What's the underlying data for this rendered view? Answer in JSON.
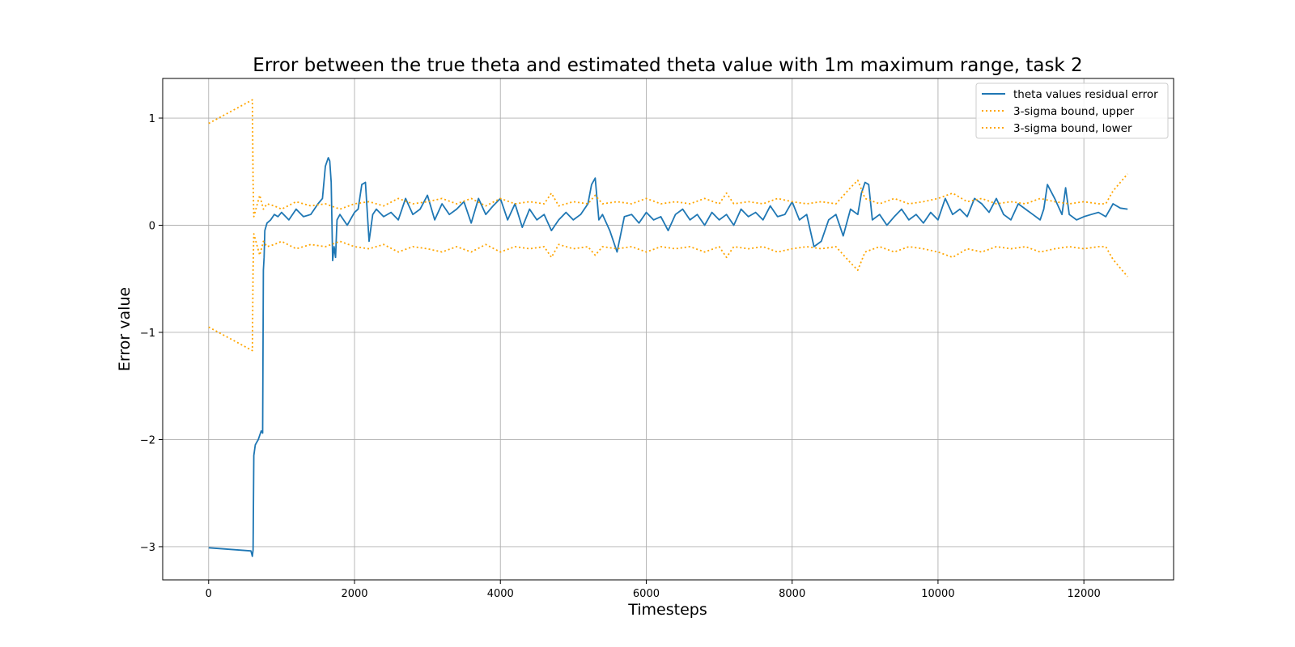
{
  "chart_data": {
    "type": "line",
    "title": "Error between the true theta and estimated theta value with 1m maximum range, task 2",
    "xlabel": "Timesteps",
    "ylabel": "Error value",
    "xlim": [
      -630,
      13230
    ],
    "ylim": [
      -3.31,
      1.37
    ],
    "x_ticks": [
      0,
      2000,
      4000,
      6000,
      8000,
      10000,
      12000
    ],
    "y_ticks": [
      1,
      0,
      -1,
      -2,
      -3
    ],
    "y_tick_labels": [
      "1",
      "0",
      "−1",
      "−2",
      "−3"
    ],
    "grid": true,
    "legend_position": "top-right",
    "legend": [
      "theta values residual error",
      "3-sigma bound, upper",
      "3-sigma bound, lower"
    ],
    "series": [
      {
        "name": "theta values residual error",
        "color": "#1f77b4",
        "style": "solid",
        "x": [
          0,
          580,
          600,
          610,
          620,
          640,
          680,
          700,
          720,
          740,
          750,
          760,
          770,
          800,
          850,
          900,
          950,
          1000,
          1100,
          1200,
          1300,
          1400,
          1500,
          1560,
          1600,
          1640,
          1660,
          1680,
          1700,
          1720,
          1740,
          1760,
          1800,
          1900,
          2000,
          2050,
          2100,
          2150,
          2200,
          2250,
          2300,
          2400,
          2500,
          2600,
          2700,
          2800,
          2900,
          3000,
          3100,
          3200,
          3300,
          3400,
          3500,
          3600,
          3700,
          3800,
          3900,
          4000,
          4100,
          4200,
          4300,
          4400,
          4500,
          4600,
          4700,
          4800,
          4900,
          5000,
          5100,
          5200,
          5250,
          5300,
          5350,
          5400,
          5500,
          5600,
          5700,
          5800,
          5900,
          6000,
          6100,
          6200,
          6300,
          6400,
          6500,
          6600,
          6700,
          6800,
          6900,
          7000,
          7100,
          7200,
          7300,
          7400,
          7500,
          7600,
          7700,
          7800,
          7900,
          8000,
          8100,
          8200,
          8300,
          8400,
          8500,
          8600,
          8700,
          8800,
          8900,
          8950,
          9000,
          9050,
          9100,
          9200,
          9300,
          9400,
          9500,
          9600,
          9700,
          9800,
          9900,
          10000,
          10100,
          10200,
          10300,
          10400,
          10500,
          10600,
          10700,
          10800,
          10900,
          11000,
          11100,
          11200,
          11300,
          11400,
          11450,
          11500,
          11600,
          11700,
          11750,
          11800,
          11900,
          12000,
          12100,
          12200,
          12300,
          12400,
          12500,
          12600
        ],
        "y": [
          -3.01,
          -3.04,
          -3.09,
          -3.03,
          -2.15,
          -2.05,
          -2.0,
          -1.96,
          -1.92,
          -1.94,
          -0.42,
          -0.3,
          -0.05,
          0.02,
          0.05,
          0.1,
          0.08,
          0.12,
          0.05,
          0.15,
          0.08,
          0.1,
          0.2,
          0.25,
          0.55,
          0.63,
          0.6,
          0.4,
          -0.33,
          -0.2,
          -0.3,
          0.05,
          0.1,
          0.0,
          0.12,
          0.15,
          0.38,
          0.4,
          -0.15,
          0.1,
          0.15,
          0.08,
          0.12,
          0.05,
          0.25,
          0.1,
          0.15,
          0.28,
          0.05,
          0.2,
          0.1,
          0.15,
          0.22,
          0.02,
          0.25,
          0.1,
          0.18,
          0.25,
          0.05,
          0.2,
          -0.02,
          0.15,
          0.05,
          0.1,
          -0.05,
          0.05,
          0.12,
          0.05,
          0.1,
          0.2,
          0.38,
          0.44,
          0.05,
          0.1,
          -0.05,
          -0.25,
          0.08,
          0.1,
          0.02,
          0.12,
          0.05,
          0.08,
          -0.05,
          0.1,
          0.15,
          0.05,
          0.1,
          0.0,
          0.12,
          0.05,
          0.1,
          0.0,
          0.15,
          0.08,
          0.12,
          0.05,
          0.18,
          0.08,
          0.1,
          0.22,
          0.05,
          0.1,
          -0.2,
          -0.15,
          0.05,
          0.1,
          -0.1,
          0.15,
          0.1,
          0.3,
          0.4,
          0.38,
          0.05,
          0.1,
          0.0,
          0.08,
          0.15,
          0.05,
          0.1,
          0.02,
          0.12,
          0.05,
          0.25,
          0.1,
          0.15,
          0.08,
          0.25,
          0.2,
          0.12,
          0.25,
          0.1,
          0.05,
          0.2,
          0.15,
          0.1,
          0.05,
          0.15,
          0.38,
          0.25,
          0.1,
          0.35,
          0.1,
          0.05,
          0.08,
          0.1,
          0.12,
          0.08,
          0.2,
          0.16,
          0.15
        ]
      },
      {
        "name": "3-sigma bound, upper",
        "color": "#ffa500",
        "style": "dotted",
        "x": [
          0,
          600,
          610,
          620,
          700,
          750,
          800,
          900,
          1000,
          1200,
          1400,
          1600,
          1800,
          2000,
          2200,
          2400,
          2600,
          2800,
          3000,
          3200,
          3400,
          3600,
          3800,
          4000,
          4200,
          4400,
          4600,
          4700,
          4800,
          5000,
          5200,
          5300,
          5400,
          5600,
          5800,
          6000,
          6200,
          6400,
          6600,
          6800,
          7000,
          7100,
          7200,
          7400,
          7600,
          7800,
          8000,
          8200,
          8400,
          8600,
          8800,
          8900,
          9000,
          9200,
          9400,
          9600,
          9800,
          10000,
          10200,
          10400,
          10600,
          10800,
          11000,
          11200,
          11400,
          11600,
          11800,
          12000,
          12200,
          12300,
          12400,
          12500,
          12600
        ],
        "y": [
          0.95,
          1.17,
          0.4,
          0.08,
          0.28,
          0.15,
          0.2,
          0.18,
          0.15,
          0.22,
          0.18,
          0.2,
          0.15,
          0.2,
          0.22,
          0.18,
          0.25,
          0.2,
          0.22,
          0.25,
          0.2,
          0.25,
          0.18,
          0.25,
          0.2,
          0.22,
          0.2,
          0.3,
          0.18,
          0.22,
          0.2,
          0.28,
          0.2,
          0.22,
          0.2,
          0.25,
          0.2,
          0.22,
          0.2,
          0.25,
          0.2,
          0.3,
          0.2,
          0.22,
          0.2,
          0.25,
          0.22,
          0.2,
          0.22,
          0.2,
          0.35,
          0.42,
          0.25,
          0.2,
          0.25,
          0.2,
          0.22,
          0.25,
          0.3,
          0.22,
          0.25,
          0.2,
          0.22,
          0.2,
          0.25,
          0.22,
          0.2,
          0.22,
          0.2,
          0.2,
          0.32,
          0.4,
          0.48
        ]
      },
      {
        "name": "3-sigma bound, lower",
        "color": "#ffa500",
        "style": "dotted",
        "x": [
          0,
          600,
          610,
          620,
          700,
          750,
          800,
          900,
          1000,
          1200,
          1400,
          1600,
          1800,
          2000,
          2200,
          2400,
          2600,
          2800,
          3000,
          3200,
          3400,
          3600,
          3800,
          4000,
          4200,
          4400,
          4600,
          4700,
          4800,
          5000,
          5200,
          5300,
          5400,
          5600,
          5800,
          6000,
          6200,
          6400,
          6600,
          6800,
          7000,
          7100,
          7200,
          7400,
          7600,
          7800,
          8000,
          8200,
          8400,
          8600,
          8800,
          8900,
          9000,
          9200,
          9400,
          9600,
          9800,
          10000,
          10200,
          10400,
          10600,
          10800,
          11000,
          11200,
          11400,
          11600,
          11800,
          12000,
          12200,
          12300,
          12400,
          12500,
          12600
        ],
        "y": [
          -0.95,
          -1.17,
          -0.4,
          -0.08,
          -0.28,
          -0.15,
          -0.2,
          -0.18,
          -0.15,
          -0.22,
          -0.18,
          -0.2,
          -0.15,
          -0.2,
          -0.22,
          -0.18,
          -0.25,
          -0.2,
          -0.22,
          -0.25,
          -0.2,
          -0.25,
          -0.18,
          -0.25,
          -0.2,
          -0.22,
          -0.2,
          -0.3,
          -0.18,
          -0.22,
          -0.2,
          -0.28,
          -0.2,
          -0.22,
          -0.2,
          -0.25,
          -0.2,
          -0.22,
          -0.2,
          -0.25,
          -0.2,
          -0.3,
          -0.2,
          -0.22,
          -0.2,
          -0.25,
          -0.22,
          -0.2,
          -0.22,
          -0.2,
          -0.35,
          -0.42,
          -0.25,
          -0.2,
          -0.25,
          -0.2,
          -0.22,
          -0.25,
          -0.3,
          -0.22,
          -0.25,
          -0.2,
          -0.22,
          -0.2,
          -0.25,
          -0.22,
          -0.2,
          -0.22,
          -0.2,
          -0.2,
          -0.32,
          -0.4,
          -0.48
        ]
      }
    ]
  }
}
